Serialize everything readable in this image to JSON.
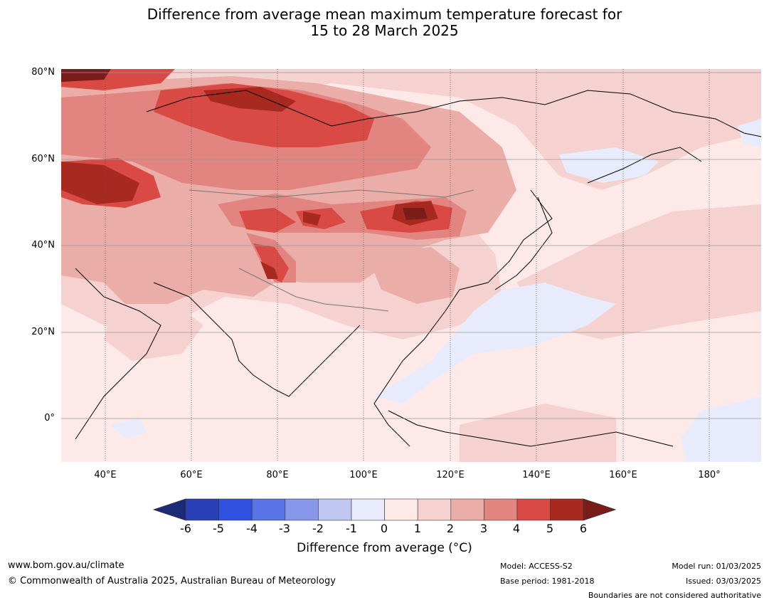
{
  "title": {
    "line1": "Difference from average mean maximum temperature forecast for",
    "line2": "15 to 28 March 2025"
  },
  "map": {
    "lat_labels": [
      "80°N",
      "60°N",
      "40°N",
      "20°N",
      "0°"
    ],
    "lon_labels": [
      "40°E",
      "60°E",
      "80°E",
      "100°E",
      "120°E",
      "140°E",
      "160°E",
      "180°"
    ]
  },
  "colorbar": {
    "ticks": [
      "-6",
      "-5",
      "-4",
      "-3",
      "-2",
      "-1",
      "0",
      "1",
      "2",
      "3",
      "4",
      "5",
      "6"
    ],
    "label": "Difference from average (°C)",
    "colors": [
      "#1c2a78",
      "#2a3fb5",
      "#3051e0",
      "#5b74e5",
      "#8797ea",
      "#c0c8f2",
      "#e8ebfb",
      "#fdeae8",
      "#f5d2cf",
      "#eaada8",
      "#e28480",
      "#d84a43",
      "#a8291f",
      "#7a1c18"
    ]
  },
  "footer": {
    "website": "www.bom.gov.au/climate",
    "copyright": "© Commonwealth of Australia 2025, Australian Bureau of Meteorology",
    "model": "Model: ACCESS-S2",
    "base_period": "Base period: 1981-2018",
    "model_run": "Model run: 01/03/2025",
    "issued": "Issued: 03/03/2025",
    "disclaimer": "Boundaries are not considered authoritative"
  }
}
